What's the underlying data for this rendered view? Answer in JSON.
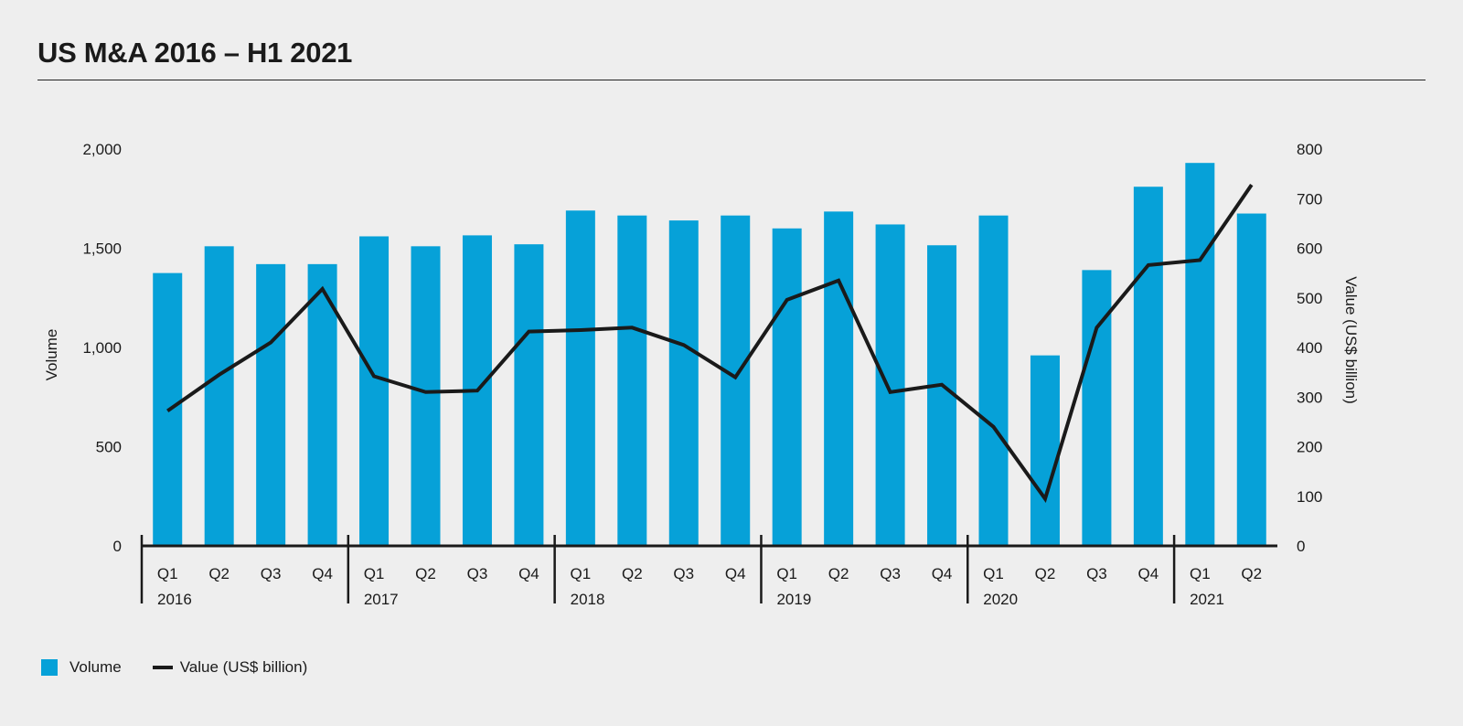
{
  "title": "US M&A 2016 – H1 2021",
  "colors": {
    "bar": "#06a1d8",
    "line": "#1a1a1a",
    "axis": "#1a1a1a"
  },
  "chart_data": {
    "type": "bar",
    "title": "US M&A 2016 – H1 2021",
    "categories": [
      "Q1",
      "Q2",
      "Q3",
      "Q4",
      "Q1",
      "Q2",
      "Q3",
      "Q4",
      "Q1",
      "Q2",
      "Q3",
      "Q4",
      "Q1",
      "Q2",
      "Q3",
      "Q4",
      "Q1",
      "Q2",
      "Q3",
      "Q4",
      "Q1",
      "Q2"
    ],
    "groups": [
      {
        "label": "2016",
        "count": 4
      },
      {
        "label": "2017",
        "count": 4
      },
      {
        "label": "2018",
        "count": 4
      },
      {
        "label": "2019",
        "count": 4
      },
      {
        "label": "2020",
        "count": 4
      },
      {
        "label": "2021",
        "count": 2
      }
    ],
    "series": [
      {
        "name": "Volume",
        "type": "bar",
        "axis": "left",
        "values": [
          1375,
          1510,
          1420,
          1420,
          1560,
          1510,
          1565,
          1520,
          1690,
          1665,
          1640,
          1665,
          1600,
          1685,
          1620,
          1515,
          1665,
          960,
          1390,
          1810,
          1930,
          1675
        ]
      },
      {
        "name": "Value (US$ billion)",
        "type": "line",
        "axis": "right",
        "values": [
          272,
          345,
          410,
          518,
          342,
          310,
          313,
          432,
          435,
          440,
          405,
          340,
          496,
          535,
          310,
          325,
          240,
          95,
          440,
          566,
          576,
          728
        ]
      }
    ],
    "ylabel_left": "Volume",
    "ylabel_right": "Value (US$ billion)",
    "ylim_left": [
      0,
      2000
    ],
    "ylim_right": [
      0,
      800
    ],
    "yticks_left": [
      "0",
      "500",
      "1,000",
      "1,500",
      "2,000"
    ],
    "yticks_right": [
      "0",
      "100",
      "200",
      "300",
      "400",
      "500",
      "600",
      "700",
      "800"
    ],
    "grid": false,
    "legend_position": "bottom-left"
  },
  "legend": [
    {
      "label": "Volume",
      "kind": "box"
    },
    {
      "label": "Value (US$ billion)",
      "kind": "line"
    }
  ]
}
